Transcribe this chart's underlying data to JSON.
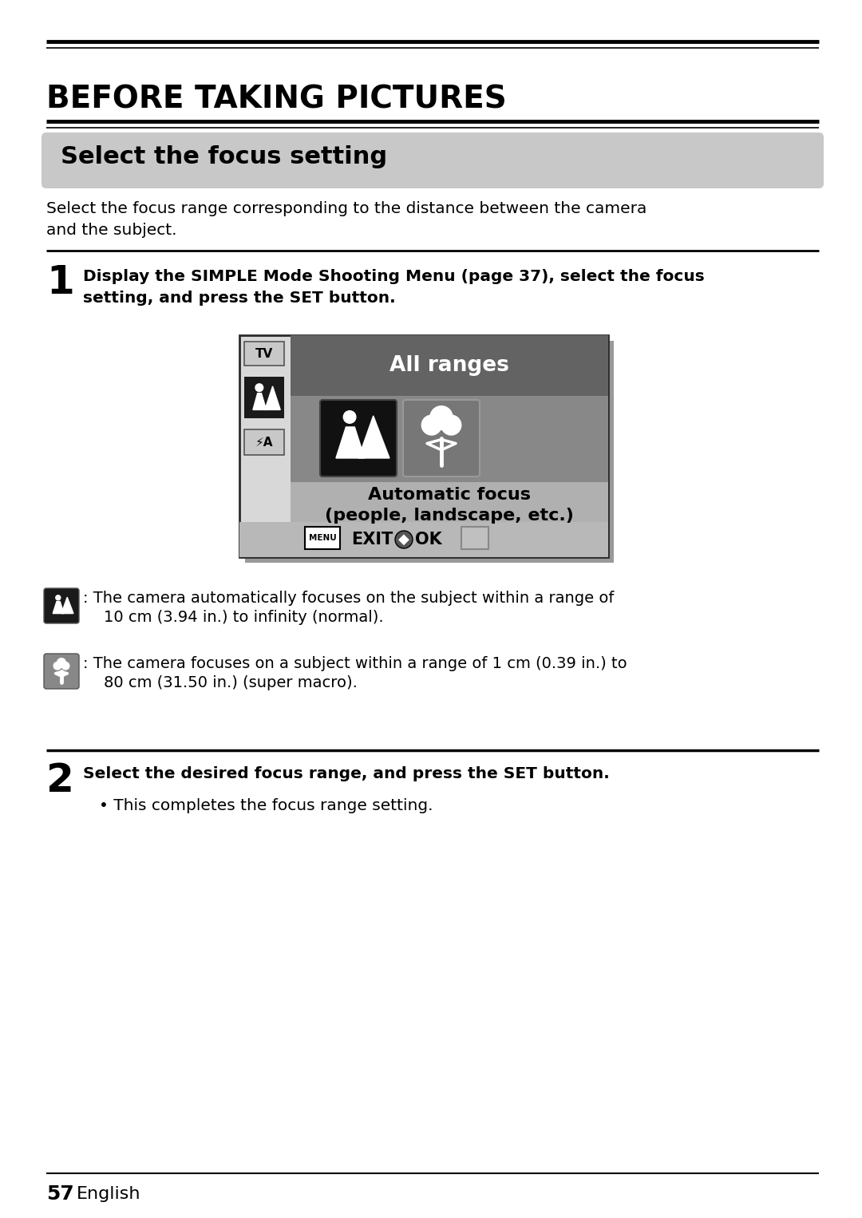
{
  "bg_color": "#ffffff",
  "title": "BEFORE TAKING PICTURES",
  "section_title": "Select the focus setting",
  "section_bg": "#c8c8c8",
  "intro_text": "Select the focus range corresponding to the distance between the camera\nand the subject.",
  "step1_number": "1",
  "step1_text": "Display the SIMPLE Mode Shooting Menu (page 37), select the focus\nsetting, and press the SET button.",
  "screen_header_text": "All ranges",
  "screen_header_bg": "#636363",
  "screen_icon_row_bg": "#888888",
  "screen_text_row_bg": "#b0b0b0",
  "screen_left_bg": "#d0d0d0",
  "screen_border_color": "#333333",
  "screen_footer_bg": "#a0a0a0",
  "auto_focus_line1": "Automatic focus",
  "auto_focus_line2": "(people, landscape, etc.)",
  "bullet1_text_line1": ": The camera automatically focuses on the subject within a range of",
  "bullet1_text_line2": "10 cm (3.94 in.) to infinity (normal).",
  "bullet2_text_line1": ": The camera focuses on a subject within a range of 1 cm (0.39 in.) to",
  "bullet2_text_line2": "80 cm (31.50 in.) (super macro).",
  "step2_number": "2",
  "step2_bold": "Select the desired focus range, and press the SET button.",
  "step2_bullet": "• This completes the focus range setting.",
  "footer_number": "57",
  "footer_text": "English",
  "line_color": "#000000"
}
